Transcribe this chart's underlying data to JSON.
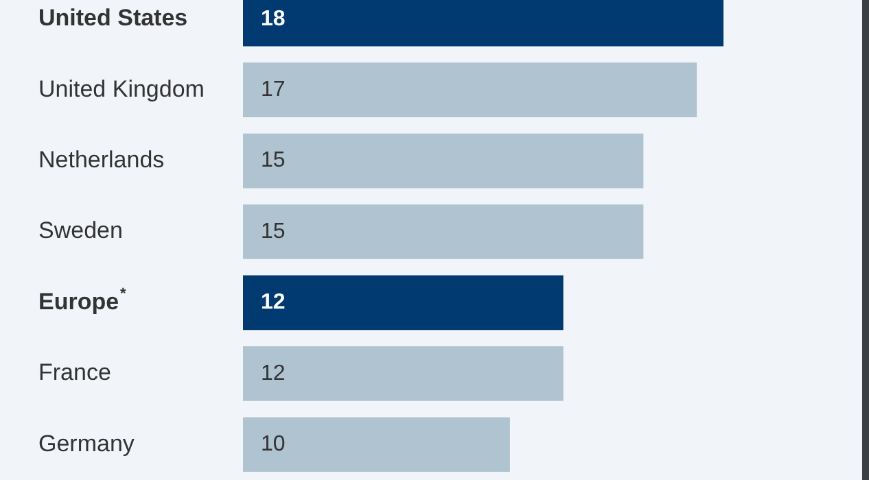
{
  "chart_data": {
    "type": "bar",
    "orientation": "horizontal",
    "categories": [
      "United States",
      "United Kingdom",
      "Netherlands",
      "Sweden",
      "Europe$^{*}$",
      "France",
      "Germany"
    ],
    "values": [
      18,
      17,
      15,
      15,
      12,
      12,
      10
    ],
    "colors": [
      "#003a70",
      "#b0c3d1",
      "#b0c3d1",
      "#b0c3d1",
      "#003a70",
      "#b0c3d1",
      "#b0c3d1"
    ],
    "data_labels": true,
    "tick_labels": false
  }
}
